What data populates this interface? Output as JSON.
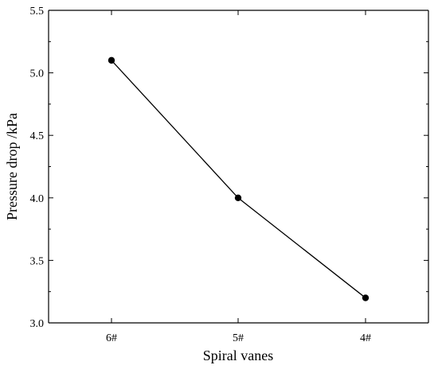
{
  "chart_data": {
    "type": "line",
    "categories": [
      "6#",
      "5#",
      "4#"
    ],
    "series": [
      {
        "values": [
          5.1,
          4.0,
          3.2
        ]
      }
    ],
    "xlabel": "Spiral vanes",
    "ylabel": "Pressure drop /kPa",
    "ylim": [
      3.0,
      5.5
    ],
    "yticks": [
      "3.0",
      "3.5",
      "4.0",
      "4.5",
      "5.0",
      "5.5"
    ],
    "grid": false,
    "colors": {
      "line": "#000000",
      "marker": "#000000"
    }
  }
}
